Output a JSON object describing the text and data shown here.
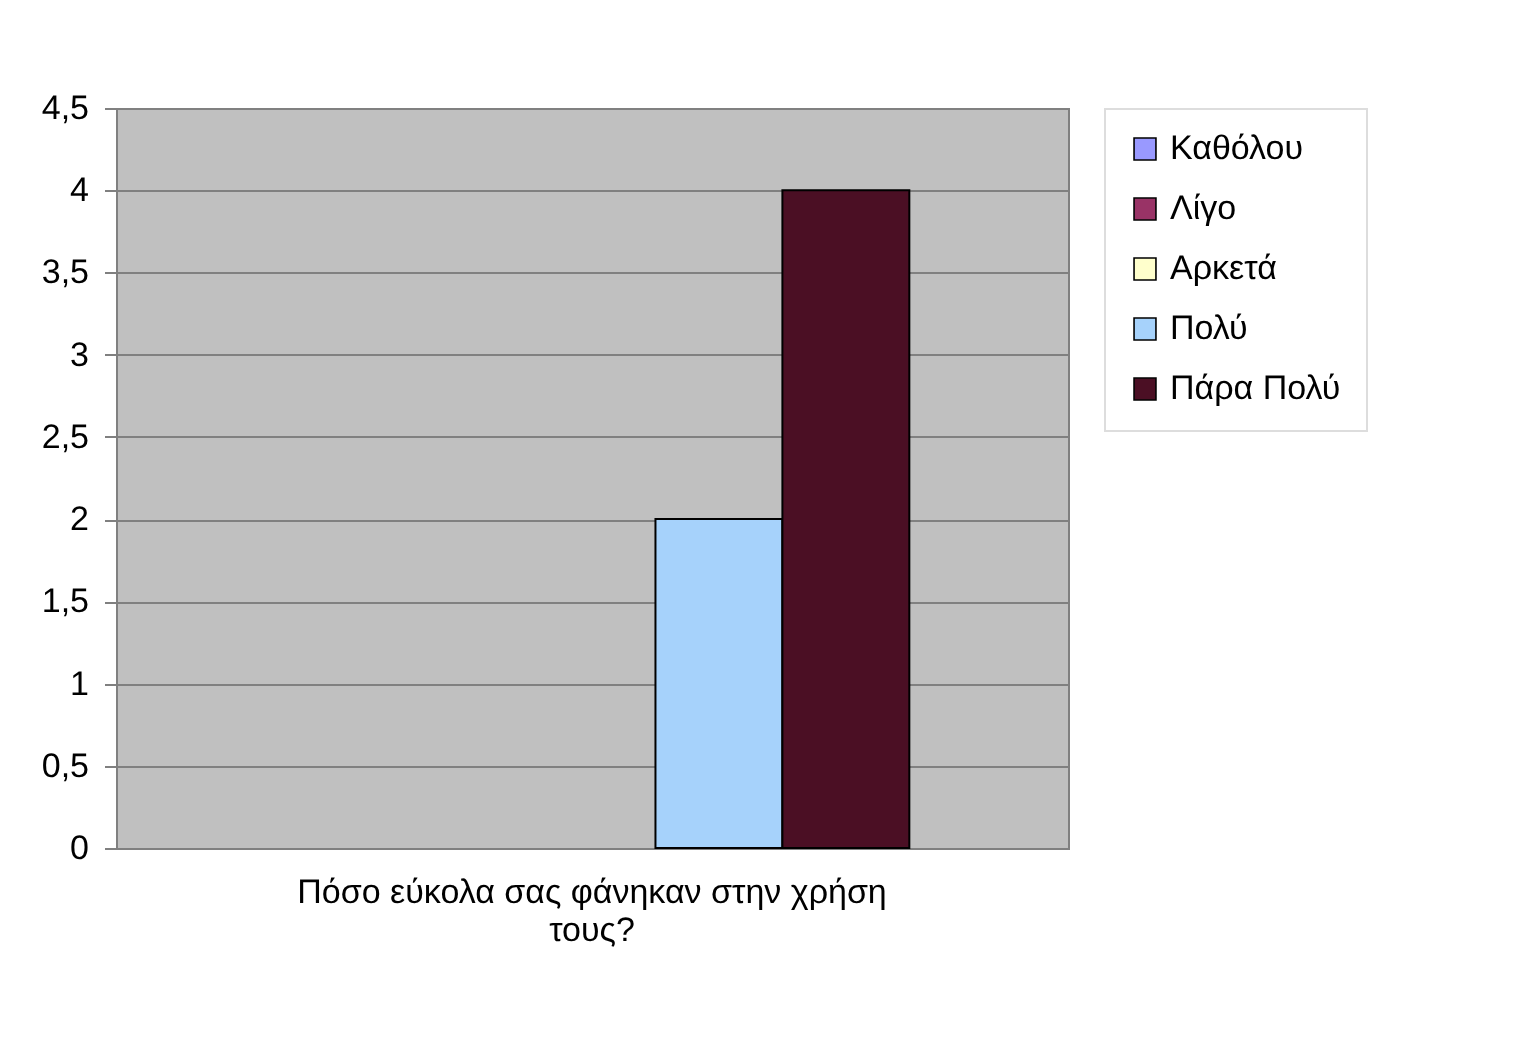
{
  "chart_data": {
    "type": "bar",
    "categories": [
      "Πόσο εύκολα σας φάνηκαν στην χρήση τους?"
    ],
    "series": [
      {
        "name": "Καθόλου",
        "color": "#9999ff",
        "values": [
          0
        ]
      },
      {
        "name": "Λίγο",
        "color": "#993366",
        "values": [
          0
        ]
      },
      {
        "name": "Αρκετά",
        "color": "#ffffcc",
        "values": [
          0
        ]
      },
      {
        "name": "Πολύ",
        "color": "#a6d2fb",
        "values": [
          2
        ]
      },
      {
        "name": "Πάρα Πολύ",
        "color": "#4b0f24",
        "values": [
          4
        ]
      }
    ],
    "ylim": [
      0,
      4.5
    ],
    "yticks": [
      {
        "value": 0,
        "label": "0"
      },
      {
        "value": 0.5,
        "label": "0,5"
      },
      {
        "value": 1,
        "label": "1"
      },
      {
        "value": 1.5,
        "label": "1,5"
      },
      {
        "value": 2,
        "label": "2"
      },
      {
        "value": 2.5,
        "label": "2,5"
      },
      {
        "value": 3,
        "label": "3"
      },
      {
        "value": 3.5,
        "label": "3,5"
      },
      {
        "value": 4,
        "label": "4"
      },
      {
        "value": 4.5,
        "label": "4,5"
      }
    ],
    "grid": "y",
    "legend": "right"
  }
}
